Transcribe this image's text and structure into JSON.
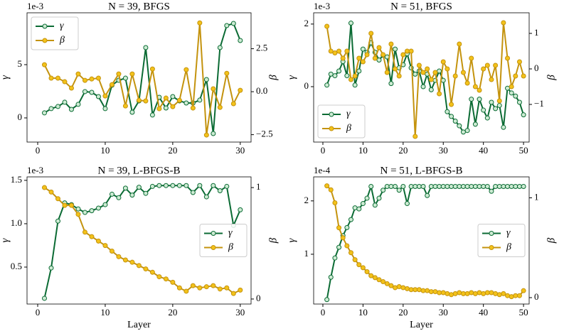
{
  "chart_data": [
    {
      "type": "line",
      "title": "N = 39, BFGS",
      "y_offset_label": "1e-3",
      "ylabel": "γ",
      "y2label": "β",
      "legend": "upper left",
      "x": [
        1,
        2,
        3,
        4,
        5,
        6,
        7,
        8,
        9,
        10,
        11,
        12,
        13,
        14,
        15,
        16,
        17,
        18,
        19,
        20,
        21,
        22,
        23,
        24,
        25,
        26,
        27,
        28,
        29,
        30
      ],
      "xlim": [
        -1.58,
        31.6
      ],
      "xticks": [
        0,
        10,
        20,
        30
      ],
      "ylim": [
        -2.27,
        9.87
      ],
      "yticks": [
        0,
        5
      ],
      "y2lim": [
        -2.93,
        4.59
      ],
      "y2ticks": [
        {
          "value": -2.5,
          "label": "−2.5"
        },
        {
          "value": 0,
          "label": "0.0"
        },
        {
          "value": 2.5,
          "label": "2.5"
        }
      ],
      "series": [
        {
          "name": "γ",
          "color": "#0b6b34",
          "marker_face": "#cdebd3",
          "values": [
            0.47,
            0.87,
            1.07,
            1.47,
            0.8,
            1.27,
            2.47,
            2.4,
            2.0,
            0.87,
            3.07,
            3.53,
            3.73,
            0.53,
            1.6,
            6.6,
            0.27,
            1.93,
            0.93,
            2.0,
            1.6,
            1.4,
            1.4,
            1.67,
            3.6,
            -1.47,
            6.6,
            8.67,
            8.87,
            7.27
          ]
        },
        {
          "name": "β",
          "color": "#c4930e",
          "marker_face": "#f3c21a",
          "axis": "y2",
          "values": [
            1.57,
            0.79,
            0.79,
            0.58,
            0.21,
            1.03,
            0.66,
            0.74,
            0.79,
            -0.25,
            0.41,
            1.03,
            -0.83,
            1.03,
            -0.5,
            -0.54,
            1.32,
            -0.99,
            -0.37,
            -0.87,
            -0.5,
            1.28,
            -0.95,
            4.0,
            -2.52,
            0.17,
            -0.91,
            1.07,
            -0.7,
            0.08
          ]
        }
      ]
    },
    {
      "type": "line",
      "title": "N = 51, BFGS",
      "y_offset_label": "1e-3",
      "ylabel": "γ",
      "y2label": "β",
      "legend": "lower left",
      "x": [
        1,
        2,
        3,
        4,
        5,
        6,
        7,
        8,
        9,
        10,
        11,
        12,
        13,
        14,
        15,
        16,
        17,
        18,
        19,
        20,
        21,
        22,
        23,
        24,
        25,
        26,
        27,
        28,
        29,
        30,
        31,
        32,
        33,
        34,
        35,
        36,
        37,
        38,
        39,
        40,
        41,
        42,
        43,
        44,
        45,
        46,
        47,
        48,
        49,
        50
      ],
      "xlim": [
        -2.3,
        51.4
      ],
      "xticks": [
        0,
        10,
        20,
        30,
        40,
        50
      ],
      "ylim": [
        -1.77,
        2.36
      ],
      "yticks": [
        0,
        2
      ],
      "y2lim": [
        -2.06,
        1.58
      ],
      "y2ticks": [
        {
          "value": -1,
          "label": "−1"
        },
        0,
        1
      ],
      "series": [
        {
          "name": "γ",
          "color": "#0b6b34",
          "marker_face": "#cdebd3",
          "values": [
            0.05,
            0.4,
            0.35,
            0.5,
            0.8,
            0.35,
            2.03,
            0.05,
            0.5,
            1.2,
            1.1,
            1.4,
            1.1,
            0.85,
            1.0,
            0.95,
            0.1,
            1.2,
            0.6,
            0.7,
            1.05,
            0.6,
            0.4,
            0.5,
            0.0,
            0.4,
            -0.1,
            0.2,
            0.5,
            0.2,
            -0.8,
            -0.95,
            -1.1,
            -1.25,
            -1.45,
            -1.4,
            -0.4,
            -1.2,
            -0.4,
            -0.75,
            -1.0,
            -0.5,
            -0.7,
            -0.6,
            -1.3,
            -0.05,
            -0.2,
            -0.3,
            -0.5,
            -0.9
          ]
        },
        {
          "name": "β",
          "color": "#c4930e",
          "marker_face": "#f3c21a",
          "axis": "y2",
          "values": [
            1.2,
            0.5,
            0.45,
            0.5,
            0.3,
            0.5,
            -0.3,
            -0.2,
            0.3,
            0.2,
            0.4,
            1.0,
            0.3,
            0.6,
            0.4,
            -0.1,
            0.7,
            0.0,
            -0.2,
            0.4,
            0.5,
            0.5,
            -1.9,
            0.1,
            -0.1,
            0.0,
            -0.3,
            -0.1,
            -0.7,
            0.2,
            0.0,
            -1.0,
            -0.2,
            0.7,
            -0.1,
            -0.4,
            0.3,
            -0.5,
            -0.6,
            0.0,
            0.1,
            -0.3,
            0.1,
            -0.9,
            1.3,
            0.3,
            -0.5,
            -0.2,
            0.2,
            -0.2
          ]
        }
      ]
    },
    {
      "type": "line",
      "title": "N = 39, L-BFGS-B",
      "y_offset_label": "1e-3",
      "xlabel": "Layer",
      "ylabel": "γ",
      "y2label": "β",
      "legend": "center right",
      "x": [
        1,
        2,
        3,
        4,
        5,
        6,
        7,
        8,
        9,
        10,
        11,
        12,
        13,
        14,
        15,
        16,
        17,
        18,
        19,
        20,
        21,
        22,
        23,
        24,
        25,
        26,
        27,
        28,
        29,
        30
      ],
      "xlim": [
        -1.58,
        31.6
      ],
      "xticks": [
        0,
        10,
        20,
        30
      ],
      "ylim": [
        0.074,
        1.54
      ],
      "yticks": [
        0.5,
        {
          "value": 1.0,
          "label": "1.0"
        },
        1.5
      ],
      "y2lim": [
        -0.045,
        1.096
      ],
      "y2ticks": [
        0,
        1
      ],
      "series": [
        {
          "name": "γ",
          "color": "#0b6b34",
          "marker_face": "#cdebd3",
          "values": [
            0.14,
            0.49,
            1.03,
            1.24,
            1.22,
            1.17,
            1.13,
            1.15,
            1.18,
            1.22,
            1.34,
            1.3,
            1.41,
            1.33,
            1.42,
            1.35,
            1.43,
            1.44,
            1.44,
            1.44,
            1.44,
            1.44,
            1.36,
            1.44,
            1.31,
            1.44,
            1.38,
            1.43,
            0.98,
            1.16
          ]
        },
        {
          "name": "β",
          "color": "#c4930e",
          "marker_face": "#f3c21a",
          "axis": "y2",
          "values": [
            1.0,
            0.96,
            0.9,
            0.84,
            0.84,
            0.76,
            0.6,
            0.56,
            0.52,
            0.48,
            0.43,
            0.38,
            0.35,
            0.33,
            0.3,
            0.27,
            0.24,
            0.2,
            0.18,
            0.15,
            0.1,
            0.07,
            0.12,
            0.1,
            0.11,
            0.12,
            0.09,
            0.1,
            0.05,
            0.08
          ]
        }
      ]
    },
    {
      "type": "line",
      "title": "N = 51, L-BFGS-B",
      "y_offset_label": "1e-4",
      "xlabel": "Layer",
      "ylabel": "γ",
      "y2label": "β",
      "legend": "center right",
      "x": [
        1,
        2,
        3,
        4,
        5,
        6,
        7,
        8,
        9,
        10,
        11,
        12,
        13,
        14,
        15,
        16,
        17,
        18,
        19,
        20,
        21,
        22,
        23,
        24,
        25,
        26,
        27,
        28,
        29,
        30,
        31,
        32,
        33,
        34,
        35,
        36,
        37,
        38,
        39,
        40,
        41,
        42,
        43,
        44,
        45,
        46,
        47,
        48,
        49,
        50
      ],
      "xlim": [
        -2.3,
        51.4
      ],
      "xticks": [
        0,
        10,
        20,
        30,
        40,
        50
      ],
      "ylim": [
        0.067,
        2.45
      ],
      "yticks": [
        1,
        2
      ],
      "y2lim": [
        -0.064,
        1.21
      ],
      "y2ticks": [
        0,
        1
      ],
      "series": [
        {
          "name": "γ",
          "color": "#0b6b34",
          "marker_face": "#cdebd3",
          "values": [
            0.15,
            0.57,
            0.93,
            1.13,
            1.35,
            1.5,
            1.65,
            1.87,
            1.85,
            1.95,
            2.05,
            2.27,
            1.92,
            2.05,
            2.2,
            2.27,
            2.27,
            2.27,
            2.2,
            2.27,
            1.95,
            2.27,
            2.27,
            2.27,
            2.27,
            2.1,
            2.27,
            2.27,
            2.27,
            2.27,
            2.27,
            2.27,
            2.27,
            2.27,
            2.27,
            2.27,
            2.27,
            2.27,
            2.27,
            2.27,
            2.27,
            2.18,
            2.27,
            2.27,
            2.27,
            2.27,
            2.27,
            2.27,
            2.27,
            2.27
          ]
        },
        {
          "name": "β",
          "color": "#c4930e",
          "marker_face": "#f3c21a",
          "axis": "y2",
          "values": [
            1.12,
            1.08,
            0.95,
            0.7,
            0.6,
            0.52,
            0.45,
            0.38,
            0.33,
            0.3,
            0.26,
            0.22,
            0.2,
            0.18,
            0.16,
            0.14,
            0.12,
            0.1,
            0.11,
            0.1,
            0.09,
            0.08,
            0.08,
            0.08,
            0.07,
            0.07,
            0.06,
            0.06,
            0.05,
            0.05,
            0.04,
            0.03,
            0.04,
            0.05,
            0.04,
            0.04,
            0.05,
            0.04,
            0.05,
            0.04,
            0.05,
            0.05,
            0.04,
            0.03,
            0.04,
            0.02,
            0.01,
            0.02,
            0.02,
            0.07
          ]
        }
      ]
    }
  ]
}
